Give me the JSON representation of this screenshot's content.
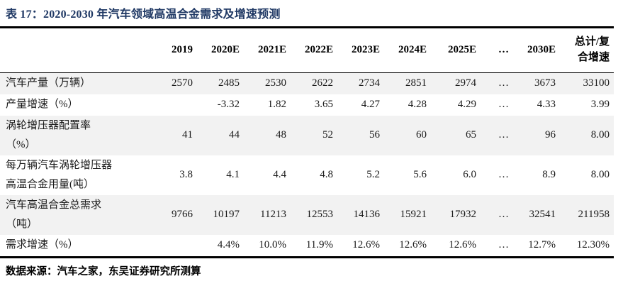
{
  "title": "表 17：2020-2030 年汽车领域高温合金需求及增速预测",
  "source_note": "数据来源：汽车之家，东吴证券研究所测算",
  "colors": {
    "title": "#1F3864",
    "rule": "#000000",
    "row_stripe": "#F2F2F2",
    "text": "#1A1A1A"
  },
  "table": {
    "headers": [
      "",
      "2019",
      "2020E",
      "2021E",
      "2022E",
      "2023E",
      "2024E",
      "2025E",
      "…",
      "2030E",
      "总计/复\n合增速"
    ],
    "rows": [
      {
        "label": "汽车产量（万辆）",
        "values": [
          "2570",
          "2485",
          "2530",
          "2622",
          "2734",
          "2851",
          "2974",
          "…",
          "3673",
          "33100"
        ],
        "shaded": true
      },
      {
        "label": "产量增速（%）",
        "values": [
          "",
          "-3.32",
          "1.82",
          "3.65",
          "4.27",
          "4.28",
          "4.29",
          "…",
          "4.33",
          "3.99"
        ],
        "shaded": false
      },
      {
        "label": "涡轮增压器配置率\n（%）",
        "values": [
          "41",
          "44",
          "48",
          "52",
          "56",
          "60",
          "65",
          "…",
          "96",
          "8.00"
        ],
        "shaded": true
      },
      {
        "label": "每万辆汽车涡轮增压器\n高温合金用量(吨）",
        "values": [
          "3.8",
          "4.1",
          "4.4",
          "4.8",
          "5.2",
          "5.6",
          "6.0",
          "…",
          "8.9",
          "8.00"
        ],
        "shaded": false
      },
      {
        "label": "汽车高温合金总需求\n（吨）",
        "values": [
          "9766",
          "10197",
          "11213",
          "12553",
          "14136",
          "15921",
          "17932",
          "…",
          "32541",
          "211958"
        ],
        "shaded": true
      },
      {
        "label": "需求增速（%）",
        "values": [
          "",
          "4.4%",
          "10.0%",
          "11.9%",
          "12.6%",
          "12.6%",
          "12.6%",
          "…",
          "12.7%",
          "12.30%"
        ],
        "shaded": false
      }
    ]
  }
}
